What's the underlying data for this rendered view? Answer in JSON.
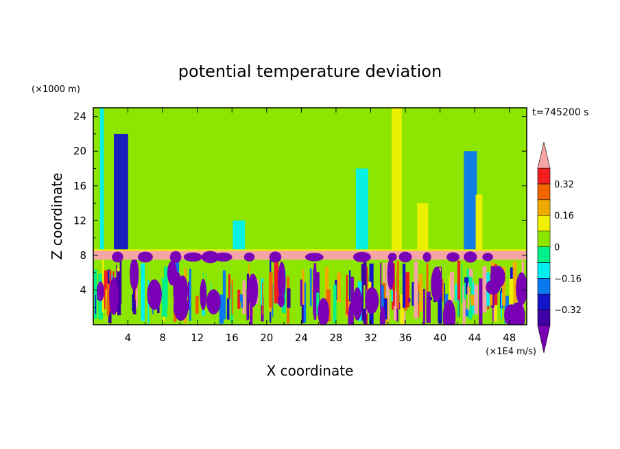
{
  "chart_data": {
    "type": "heatmap",
    "title": "potential temperature deviation",
    "xlabel": "X coordinate",
    "ylabel": "Z coordinate",
    "x_unit": "(×1E4 m/s)",
    "y_unit": "(×1000 m)",
    "time_label": "t=745200 s",
    "xlim": [
      0,
      50
    ],
    "ylim": [
      0,
      25
    ],
    "x_ticks": [
      "4",
      "8",
      "12",
      "16",
      "20",
      "24",
      "28",
      "32",
      "36",
      "40",
      "44",
      "48"
    ],
    "y_ticks": [
      "4",
      "8",
      "12",
      "16",
      "20",
      "24"
    ],
    "colorbar": {
      "levels": [
        -0.4,
        -0.32,
        -0.24,
        -0.16,
        -0.08,
        0,
        0.08,
        0.16,
        0.24,
        0.32,
        0.4
      ],
      "tick_labels": [
        "0.32",
        "0.16",
        "0",
        "−0.16",
        "−0.32"
      ],
      "colors_low_to_high": [
        "#7a00b5",
        "#3c00a5",
        "#1414c8",
        "#0a78f0",
        "#00f0f0",
        "#00f08c",
        "#8ce600",
        "#f0f000",
        "#f0aa00",
        "#f06400",
        "#f01e1e",
        "#f5a5a5"
      ],
      "extend": "both"
    },
    "regions": {
      "boundary_layer_top_z": 7.5,
      "inversion_band_z": [
        7.5,
        8.6
      ],
      "inversion_value": 0.4,
      "free_atmosphere_mean": 0.0
    },
    "upper_columns": [
      {
        "x": 1.0,
        "value": -0.12,
        "z_top": 25
      },
      {
        "x": 3.2,
        "value": -0.28,
        "z_top": 22
      },
      {
        "x": 10.2,
        "value": 0.06,
        "z_top": 25
      },
      {
        "x": 16.0,
        "value": 0.06,
        "z_top": 25
      },
      {
        "x": 16.8,
        "value": -0.12,
        "z_top": 12
      },
      {
        "x": 22.5,
        "value": 0.06,
        "z_top": 25
      },
      {
        "x": 25.5,
        "value": 0.06,
        "z_top": 25
      },
      {
        "x": 28.5,
        "value": 0.06,
        "z_top": 25
      },
      {
        "x": 31.0,
        "value": -0.12,
        "z_top": 18
      },
      {
        "x": 35.0,
        "value": 0.14,
        "z_top": 25
      },
      {
        "x": 36.5,
        "value": 0.06,
        "z_top": 25
      },
      {
        "x": 38.0,
        "value": 0.14,
        "z_top": 14
      },
      {
        "x": 43.5,
        "value": -0.22,
        "z_top": 20
      },
      {
        "x": 44.5,
        "value": 0.14,
        "z_top": 15
      },
      {
        "x": 47.5,
        "value": 0.06,
        "z_top": 25
      }
    ]
  }
}
